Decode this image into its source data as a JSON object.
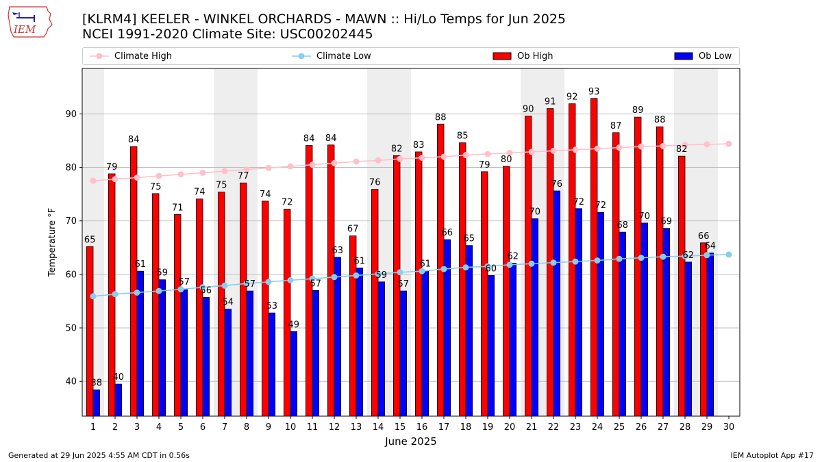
{
  "header": {
    "logo_text": "IEM",
    "title_line1": "[KLRM4] KEELER - WINKEL ORCHARDS - MAWN :: Hi/Lo Temps for Jun 2025",
    "title_line2": "NCEI 1991-2020 Climate Site: USC00202445"
  },
  "legend": {
    "climate_high": "Climate High",
    "climate_low": "Climate Low",
    "ob_high": "Ob High",
    "ob_low": "Ob Low"
  },
  "footer": {
    "generated": "Generated at 29 Jun 2025 4:55 AM CDT in 0.56s",
    "app": "IEM Autoplot App #17"
  },
  "colors": {
    "ob_high": "#ff0000",
    "ob_low": "#0000ff",
    "climate_high": "#ffc0cb",
    "climate_low": "#87ceeb",
    "weekend_band": "#eeeeee",
    "grid": "#b0b0b0"
  },
  "chart_data": {
    "type": "bar",
    "xlabel": "June 2025",
    "ylabel": "Temperature °F",
    "ylim": [
      33.5,
      98.5
    ],
    "xlim": [
      0.5,
      30.5
    ],
    "yticks": [
      40,
      50,
      60,
      70,
      80,
      90
    ],
    "grid": true,
    "legend_position": "top",
    "categories": [
      "1",
      "2",
      "3",
      "4",
      "5",
      "6",
      "7",
      "8",
      "9",
      "10",
      "11",
      "12",
      "13",
      "14",
      "15",
      "16",
      "17",
      "18",
      "19",
      "20",
      "21",
      "22",
      "23",
      "24",
      "25",
      "26",
      "27",
      "28",
      "29",
      "30"
    ],
    "weekend_days": [
      1,
      7,
      8,
      14,
      15,
      21,
      22,
      28,
      29
    ],
    "series": [
      {
        "name": "Ob High",
        "values": [
          65.2,
          78.8,
          83.9,
          75.1,
          71.2,
          74.1,
          75.4,
          77.1,
          73.7,
          72.2,
          84.1,
          84.2,
          67.2,
          75.9,
          82.2,
          82.9,
          88.1,
          84.6,
          79.2,
          80.2,
          89.6,
          91.0,
          91.9,
          92.9,
          86.5,
          89.4,
          87.6,
          82.1,
          65.9,
          null
        ],
        "labels": [
          "65",
          "79",
          "84",
          "75",
          "71",
          "74",
          "75",
          "77",
          "74",
          "72",
          "84",
          "84",
          "67",
          "76",
          "82",
          "83",
          "88",
          "85",
          "79",
          "80",
          "90",
          "91",
          "92",
          "93",
          "87",
          "89",
          "88",
          "82",
          "66",
          ""
        ]
      },
      {
        "name": "Ob Low",
        "values": [
          38.4,
          39.5,
          60.6,
          59.0,
          57.3,
          55.7,
          53.5,
          56.9,
          52.8,
          49.3,
          57.0,
          63.2,
          61.2,
          58.6,
          56.9,
          60.7,
          66.5,
          65.4,
          59.8,
          62.1,
          70.4,
          75.6,
          72.3,
          71.6,
          67.9,
          69.6,
          68.6,
          62.3,
          64.0,
          null
        ],
        "labels": [
          "38",
          "40",
          "61",
          "59",
          "57",
          "56",
          "54",
          "57",
          "53",
          "49",
          "57",
          "63",
          "61",
          "59",
          "57",
          "61",
          "66",
          "65",
          "60",
          "62",
          "70",
          "76",
          "72",
          "72",
          "68",
          "70",
          "69",
          "62",
          "64",
          ""
        ]
      },
      {
        "name": "Climate High",
        "values": [
          77.5,
          77.8,
          78.1,
          78.4,
          78.7,
          79.0,
          79.3,
          79.6,
          79.9,
          80.2,
          80.5,
          80.8,
          81.1,
          81.3,
          81.6,
          81.8,
          82.0,
          82.3,
          82.5,
          82.7,
          82.9,
          83.1,
          83.3,
          83.5,
          83.7,
          83.9,
          84.0,
          84.2,
          84.3,
          84.4
        ]
      },
      {
        "name": "Climate Low",
        "values": [
          55.9,
          56.3,
          56.6,
          56.9,
          57.2,
          57.6,
          57.9,
          58.3,
          58.6,
          58.9,
          59.2,
          59.5,
          59.8,
          60.1,
          60.4,
          60.6,
          61.0,
          61.3,
          61.5,
          61.8,
          62.0,
          62.2,
          62.4,
          62.6,
          62.9,
          63.1,
          63.3,
          63.4,
          63.6,
          63.7
        ]
      }
    ]
  }
}
